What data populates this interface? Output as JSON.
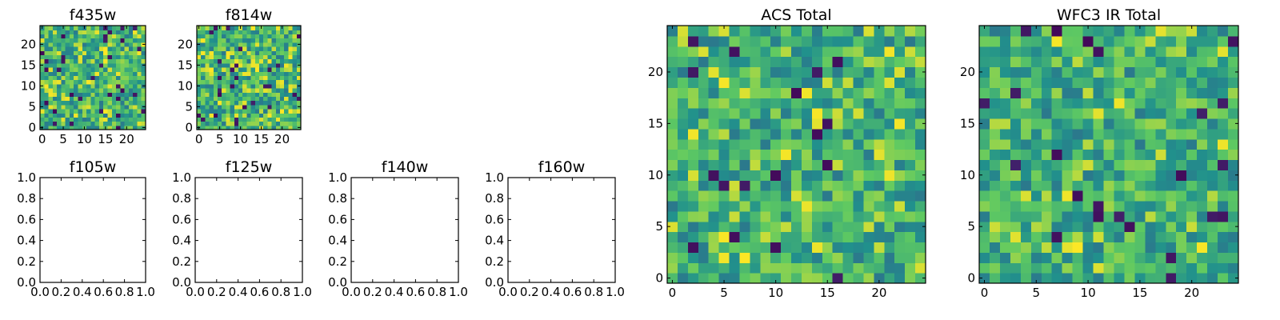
{
  "chart_data": [
    {
      "type": "heatmap",
      "title": "f435w",
      "xlim": [
        -0.5,
        24.5
      ],
      "ylim": [
        -0.5,
        24.5
      ],
      "xticks": [
        "0",
        "5",
        "10",
        "15",
        "20"
      ],
      "yticks": [
        "0",
        "5",
        "10",
        "15",
        "20"
      ],
      "grid": false,
      "colormap": "viridis",
      "shape": [
        25,
        25
      ],
      "seed": 11,
      "dark_rate": 0.05,
      "bright_rate": 0.1
    },
    {
      "type": "heatmap",
      "title": "f814w",
      "xlim": [
        -0.5,
        24.5
      ],
      "ylim": [
        -0.5,
        24.5
      ],
      "xticks": [
        "0",
        "5",
        "10",
        "15",
        "20"
      ],
      "yticks": [
        "0",
        "5",
        "10",
        "15",
        "20"
      ],
      "grid": false,
      "colormap": "viridis",
      "shape": [
        25,
        25
      ],
      "seed": 23,
      "dark_rate": 0.04,
      "bright_rate": 0.16
    },
    {
      "type": "empty",
      "title": "f105w",
      "xlim": [
        0,
        1
      ],
      "ylim": [
        0,
        1
      ],
      "xticks": [
        "0.0",
        "0.2",
        "0.4",
        "0.6",
        "0.8",
        "1.0"
      ],
      "yticks": [
        "0.0",
        "0.2",
        "0.4",
        "0.6",
        "0.8",
        "1.0"
      ],
      "grid": false
    },
    {
      "type": "empty",
      "title": "f125w",
      "xlim": [
        0,
        1
      ],
      "ylim": [
        0,
        1
      ],
      "xticks": [
        "0.0",
        "0.2",
        "0.4",
        "0.6",
        "0.8",
        "1.0"
      ],
      "yticks": [
        "0.0",
        "0.2",
        "0.4",
        "0.6",
        "0.8",
        "1.0"
      ],
      "grid": false
    },
    {
      "type": "empty",
      "title": "f140w",
      "xlim": [
        0,
        1
      ],
      "ylim": [
        0,
        1
      ],
      "xticks": [
        "0.0",
        "0.2",
        "0.4",
        "0.6",
        "0.8",
        "1.0"
      ],
      "yticks": [
        "0.0",
        "0.2",
        "0.4",
        "0.6",
        "0.8",
        "1.0"
      ],
      "grid": false
    },
    {
      "type": "empty",
      "title": "f160w",
      "xlim": [
        0,
        1
      ],
      "ylim": [
        0,
        1
      ],
      "xticks": [
        "0.0",
        "0.2",
        "0.4",
        "0.6",
        "0.8",
        "1.0"
      ],
      "yticks": [
        "0.0",
        "0.2",
        "0.4",
        "0.6",
        "0.8",
        "1.0"
      ],
      "grid": false
    },
    {
      "type": "heatmap",
      "title": "ACS Total",
      "xlim": [
        -0.5,
        24.5
      ],
      "ylim": [
        -0.5,
        24.5
      ],
      "xticks": [
        "0",
        "5",
        "10",
        "15",
        "20"
      ],
      "yticks": [
        "0",
        "5",
        "10",
        "15",
        "20"
      ],
      "grid": false,
      "colormap": "viridis",
      "shape": [
        25,
        25
      ],
      "seed": 37,
      "dark_rate": 0.035,
      "bright_rate": 0.08
    },
    {
      "type": "heatmap",
      "title": "WFC3 IR Total",
      "xlim": [
        -0.5,
        24.5
      ],
      "ylim": [
        -0.5,
        24.5
      ],
      "xticks": [
        "0",
        "5",
        "10",
        "15",
        "20"
      ],
      "yticks": [
        "0",
        "5",
        "10",
        "15",
        "20"
      ],
      "grid": false,
      "colormap": "viridis",
      "shape": [
        25,
        25
      ],
      "seed": 53,
      "dark_rate": 0.04,
      "bright_rate": 0.07
    }
  ],
  "colors": {
    "viridis": [
      "#440154",
      "#3b528b",
      "#21918c",
      "#5ec962",
      "#fde725"
    ],
    "frame": "#000000",
    "background": "#ffffff"
  }
}
